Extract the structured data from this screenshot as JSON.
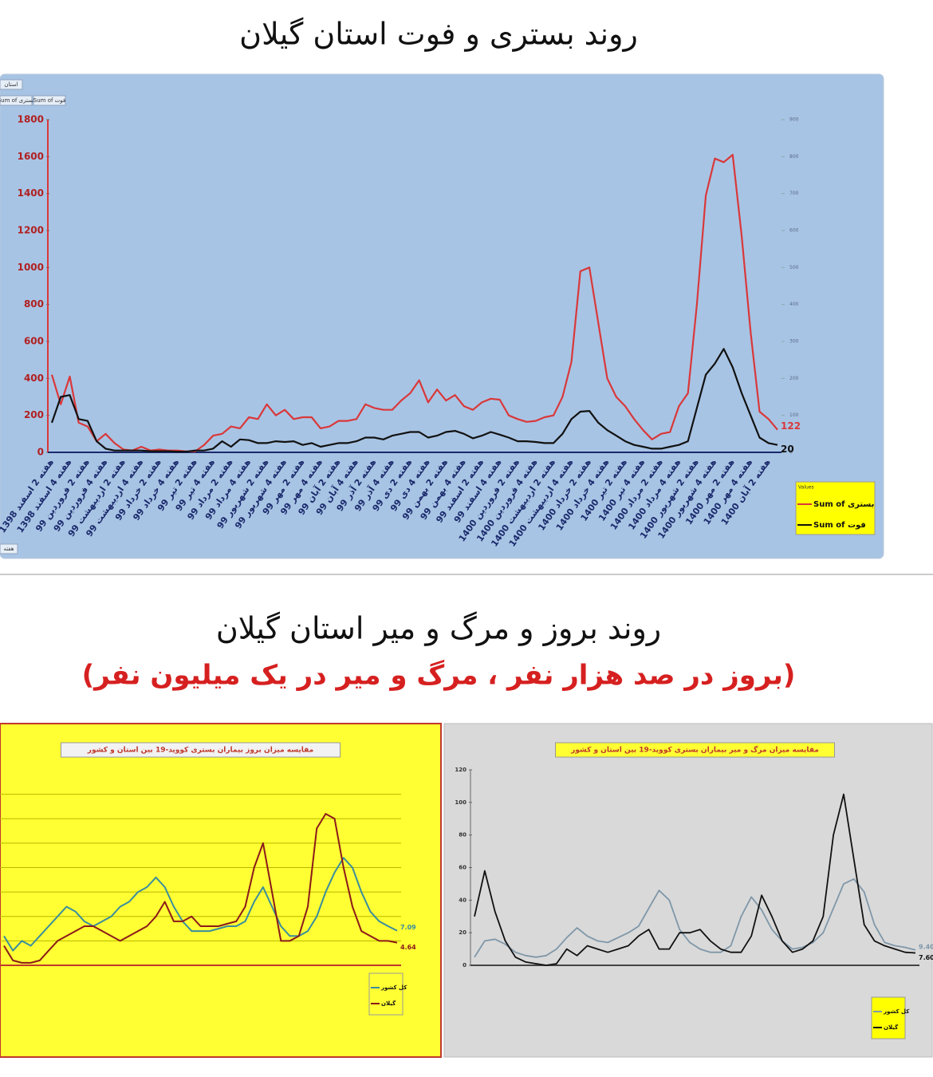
{
  "titles": [
    "روند بستری و فوت استان گیلان",
    "روند بروز و مرگ و میر استان گیلان",
    "(بروز در صد هزار نفر ، مرگ و میر در یک میلیون نفر)"
  ],
  "pivot": {
    "filter": "استان",
    "fields": [
      "Sum of بستری",
      "Sum of فوت"
    ],
    "axis": "هفته"
  },
  "chart_data": [
    {
      "type": "line",
      "legend_title": "Values",
      "legend": "bottom-right",
      "end_labels": true,
      "categories": [
        "هفته 2 اسفند 1398",
        null,
        "هفته 4 اسفند 1398",
        null,
        "هفته 2 فروردین 99",
        null,
        "هفته 4 فروردین 99",
        null,
        "هفته 2 اردیبهشت 99",
        null,
        "هفته 4 اردیبهشت 99",
        null,
        "هفته 2 خرداد 99",
        null,
        "هفته 4 خرداد 99",
        null,
        "هفته 2 تیر 99",
        null,
        "هفته 4 تیر 99",
        null,
        "هفته 2 مرداد 99",
        null,
        "هفته 4 مرداد 99",
        null,
        "هفته 2 شهریور 99",
        null,
        "هفته 4 شهریور 99",
        null,
        "هفته 2 مهر 99",
        null,
        "هفته 4 مهر 99",
        null,
        "هفته 2 آبان 99",
        null,
        "هفته 4 آبان 99",
        null,
        "هفته 2 آذر 99",
        null,
        "هفته 4 آذر 99",
        null,
        "هفته 2 دی 99",
        null,
        "هفته 4 دی 99",
        null,
        "هفته 2 بهمن 99",
        null,
        "هفته 4 بهمن 99",
        null,
        "هفته 2 اسفند 99",
        null,
        "هفته 4 اسفند 99",
        null,
        "هفته 2 فروردین 1400",
        null,
        "هفته 4 فروردین 1400",
        null,
        "هفته 2 اردیبهشت 1400",
        null,
        "هفته 4 اردیبهشت 1400",
        null,
        "هفته 2 خرداد 1400",
        null,
        "هفته 4 خرداد 1400",
        null,
        "هفته 2 تیر 1400",
        null,
        "هفته 4 تیر 1400",
        null,
        "هفته 2 مرداد 1400",
        null,
        "هفته 4 مرداد 1400",
        null,
        "هفته 2 شهریور 1400",
        null,
        "هفته 4 شهریور 1400",
        null,
        "هفته 2 مهر 1400",
        null,
        "هفته 4 مهر 1400",
        null,
        "هفته 2 آبان 1400",
        null
      ],
      "series": [
        {
          "name": "Sum of بستری",
          "color": "#d9383a",
          "values": [
            420,
            260,
            410,
            160,
            140,
            60,
            100,
            50,
            15,
            10,
            30,
            10,
            15,
            10,
            10,
            5,
            5,
            40,
            90,
            100,
            140,
            130,
            190,
            180,
            260,
            200,
            230,
            180,
            190,
            190,
            130,
            140,
            170,
            170,
            180,
            260,
            240,
            230,
            230,
            280,
            320,
            390,
            270,
            340,
            280,
            310,
            250,
            230,
            270,
            290,
            285,
            200,
            180,
            165,
            170,
            190,
            200,
            300,
            490,
            980,
            1000,
            700,
            400,
            300,
            250,
            180,
            120,
            70,
            100,
            110,
            250,
            320,
            800,
            1390,
            1590,
            1570,
            1610,
            1170,
            650,
            220,
            180,
            122
          ]
        },
        {
          "name": "Sum of فوت",
          "color": "#111111",
          "axis": "y2",
          "values": [
            80,
            150,
            155,
            90,
            85,
            30,
            10,
            5,
            5,
            5,
            5,
            3,
            3,
            3,
            2,
            2,
            5,
            5,
            10,
            30,
            15,
            35,
            33,
            25,
            25,
            30,
            28,
            30,
            20,
            25,
            15,
            20,
            25,
            25,
            30,
            40,
            40,
            35,
            45,
            50,
            55,
            55,
            40,
            45,
            55,
            58,
            50,
            38,
            45,
            55,
            48,
            40,
            30,
            30,
            28,
            25,
            25,
            50,
            90,
            110,
            112,
            80,
            60,
            45,
            30,
            20,
            15,
            10,
            10,
            15,
            20,
            30,
            120,
            210,
            240,
            280,
            230,
            160,
            100,
            40,
            25,
            20
          ]
        }
      ],
      "ylim": [
        0,
        1800
      ],
      "yticks": [
        0,
        200,
        400,
        600,
        800,
        1000,
        1200,
        1400,
        1600,
        1800
      ],
      "y2lim": [
        0,
        900
      ],
      "y2ticks": [
        0,
        100,
        200,
        300,
        400,
        500,
        600,
        700,
        800,
        900
      ]
    },
    {
      "type": "line",
      "title": "مقایسه میزان بروز بیماران بستری کووید-19 بین استان و کشور",
      "legend": "bottom-right",
      "end_labels": true,
      "grid": true,
      "show_ytick_labels": false,
      "categories": [
        null,
        null,
        null,
        null,
        null,
        null,
        null,
        null,
        null,
        null,
        null,
        null,
        null,
        null,
        null,
        null,
        null,
        null,
        null,
        null,
        null,
        null,
        null,
        null,
        null,
        null,
        null,
        null,
        null,
        null,
        null,
        null,
        null,
        null,
        null,
        null,
        null,
        null,
        null,
        null,
        null,
        null,
        null,
        null,
        null
      ],
      "series": [
        {
          "name": "کل کشور",
          "color": "#3a8d9c",
          "values": [
            6,
            3,
            5,
            4,
            6,
            8,
            10,
            12,
            11,
            9,
            8,
            9,
            10,
            12,
            13,
            15,
            16,
            18,
            16,
            12,
            9,
            7,
            7,
            7,
            7.5,
            8,
            8,
            9,
            13,
            16,
            12,
            8,
            6,
            6,
            7,
            10,
            15,
            19,
            22,
            20,
            15,
            11,
            9,
            8,
            7.09
          ]
        },
        {
          "name": "گیلان",
          "color": "#8b1a1a",
          "values": [
            4,
            1,
            0.5,
            0.5,
            1,
            3,
            5,
            6,
            7,
            8,
            8,
            7,
            6,
            5,
            6,
            7,
            8,
            10,
            13,
            9,
            9,
            10,
            8,
            8,
            8,
            8.5,
            9,
            12,
            20,
            25,
            15,
            5,
            5,
            6,
            12,
            28,
            31,
            30,
            20,
            12,
            7,
            6,
            5,
            5,
            4.64
          ]
        }
      ],
      "ylim": [
        0,
        40
      ],
      "yticks": [
        0,
        5,
        10,
        15,
        20,
        25,
        30,
        35
      ]
    },
    {
      "type": "line",
      "title": "مقایسه میزان مرگ و میر بیماران بستری کووید-19 بین استان و کشور",
      "legend": "bottom-right",
      "end_labels": true,
      "categories": [
        null,
        null,
        null,
        null,
        null,
        null,
        null,
        null,
        null,
        null,
        null,
        null,
        null,
        null,
        null,
        null,
        null,
        null,
        null,
        null,
        null,
        null,
        null,
        null,
        null,
        null,
        null,
        null,
        null,
        null,
        null,
        null,
        null,
        null,
        null,
        null,
        null,
        null,
        null,
        null,
        null,
        null,
        null,
        null
      ],
      "series": [
        {
          "name": "کل کشور",
          "color": "#7f97a9",
          "values": [
            5,
            15,
            16,
            13,
            8,
            6,
            5,
            6,
            10,
            17,
            23,
            18,
            15,
            14,
            17,
            20,
            24,
            35,
            46,
            40,
            22,
            14,
            10,
            8,
            8,
            12,
            30,
            42,
            34,
            22,
            15,
            10,
            11,
            14,
            20,
            35,
            50,
            53,
            45,
            25,
            14,
            12,
            11,
            9.4
          ],
          "value_labels": [
            null,
            null,
            null,
            null,
            null,
            null,
            null,
            null,
            null,
            null,
            null,
            null,
            null,
            null,
            null,
            null,
            null,
            null,
            null,
            null,
            null,
            null,
            null,
            null,
            null,
            null,
            null,
            null,
            null,
            null,
            null,
            null,
            null,
            null,
            null,
            null,
            null,
            null,
            null,
            null,
            null,
            null,
            null,
            "9.40"
          ]
        },
        {
          "name": "گیلان",
          "color": "#111111",
          "values": [
            30,
            58,
            33,
            15,
            5,
            2,
            1,
            0,
            1,
            10,
            6,
            12,
            10,
            8,
            10,
            12,
            18,
            22,
            10,
            10,
            20,
            20,
            22,
            15,
            10,
            8,
            8,
            18,
            43,
            30,
            15,
            8,
            10,
            15,
            30,
            80,
            105,
            65,
            25,
            15,
            12,
            10,
            8,
            7.6
          ],
          "value_labels": [
            null,
            null,
            null,
            null,
            null,
            null,
            null,
            null,
            null,
            null,
            null,
            null,
            null,
            null,
            null,
            null,
            null,
            null,
            null,
            null,
            null,
            null,
            null,
            null,
            null,
            null,
            null,
            null,
            null,
            null,
            null,
            null,
            null,
            null,
            null,
            null,
            null,
            null,
            null,
            null,
            null,
            null,
            null,
            "7.60"
          ]
        }
      ],
      "ylim": [
        0,
        120
      ],
      "yticks": [
        0,
        20,
        40,
        60,
        80,
        100,
        120
      ]
    }
  ]
}
